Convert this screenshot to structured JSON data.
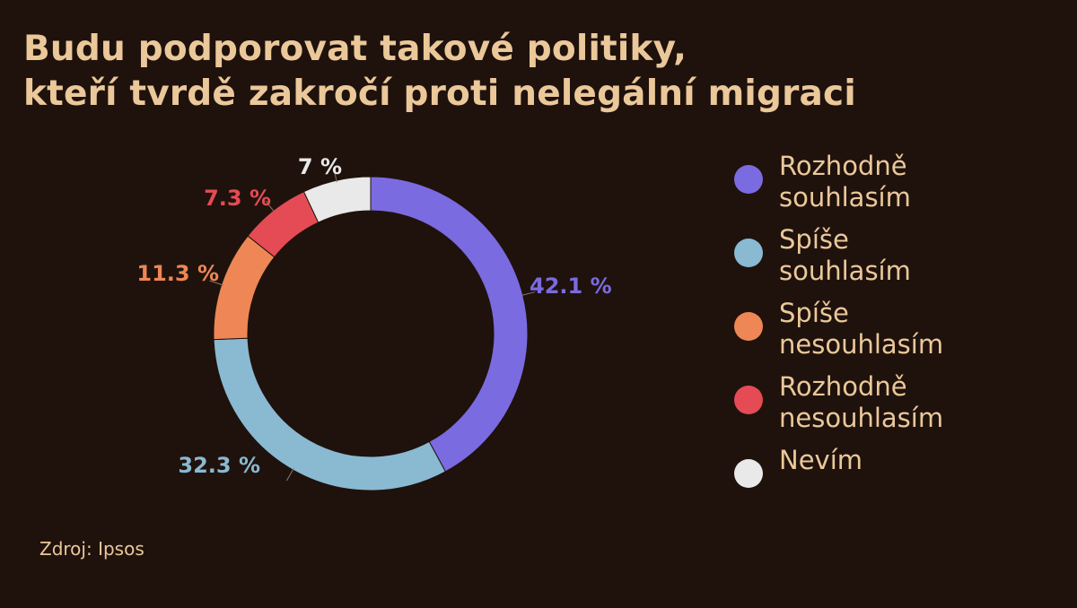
{
  "chart_data": {
    "type": "pie",
    "title": "Budu podporovat takové politiky, kteří tvrdě zakročí proti nelegální migraci",
    "title_lines": [
      "Budu podporovat takové politiky,",
      "kteří tvrdě zakročí proti nelegální migraci"
    ],
    "categories": [
      "Rozhodně souhlasím",
      "Spíše souhlasím",
      "Spíše nesouhlasím",
      "Rozhodně nesouhlasím",
      "Nevím"
    ],
    "values": [
      42.1,
      32.3,
      11.3,
      7.3,
      7.0
    ],
    "value_labels": [
      "42.1 %",
      "32.3 %",
      "11.3 %",
      "7.3 %",
      "7 %"
    ],
    "colors": [
      "#7b6be0",
      "#8ab9d2",
      "#ee8755",
      "#e54b54",
      "#e9e9e9"
    ],
    "legend_placement": "right",
    "donut": true
  },
  "legend": [
    {
      "lines": [
        "Rozhodně",
        "souhlasím"
      ],
      "color": "#7b6be0"
    },
    {
      "lines": [
        "Spíše",
        "souhlasím"
      ],
      "color": "#8ab9d2"
    },
    {
      "lines": [
        "Spíše",
        "nesouhlasím"
      ],
      "color": "#ee8755"
    },
    {
      "lines": [
        "Rozhodně",
        "nesouhlasím"
      ],
      "color": "#e54b54"
    },
    {
      "lines": [
        "Nevím"
      ],
      "color": "#e9e9e9"
    }
  ],
  "source": "Zdroj: Ipsos"
}
